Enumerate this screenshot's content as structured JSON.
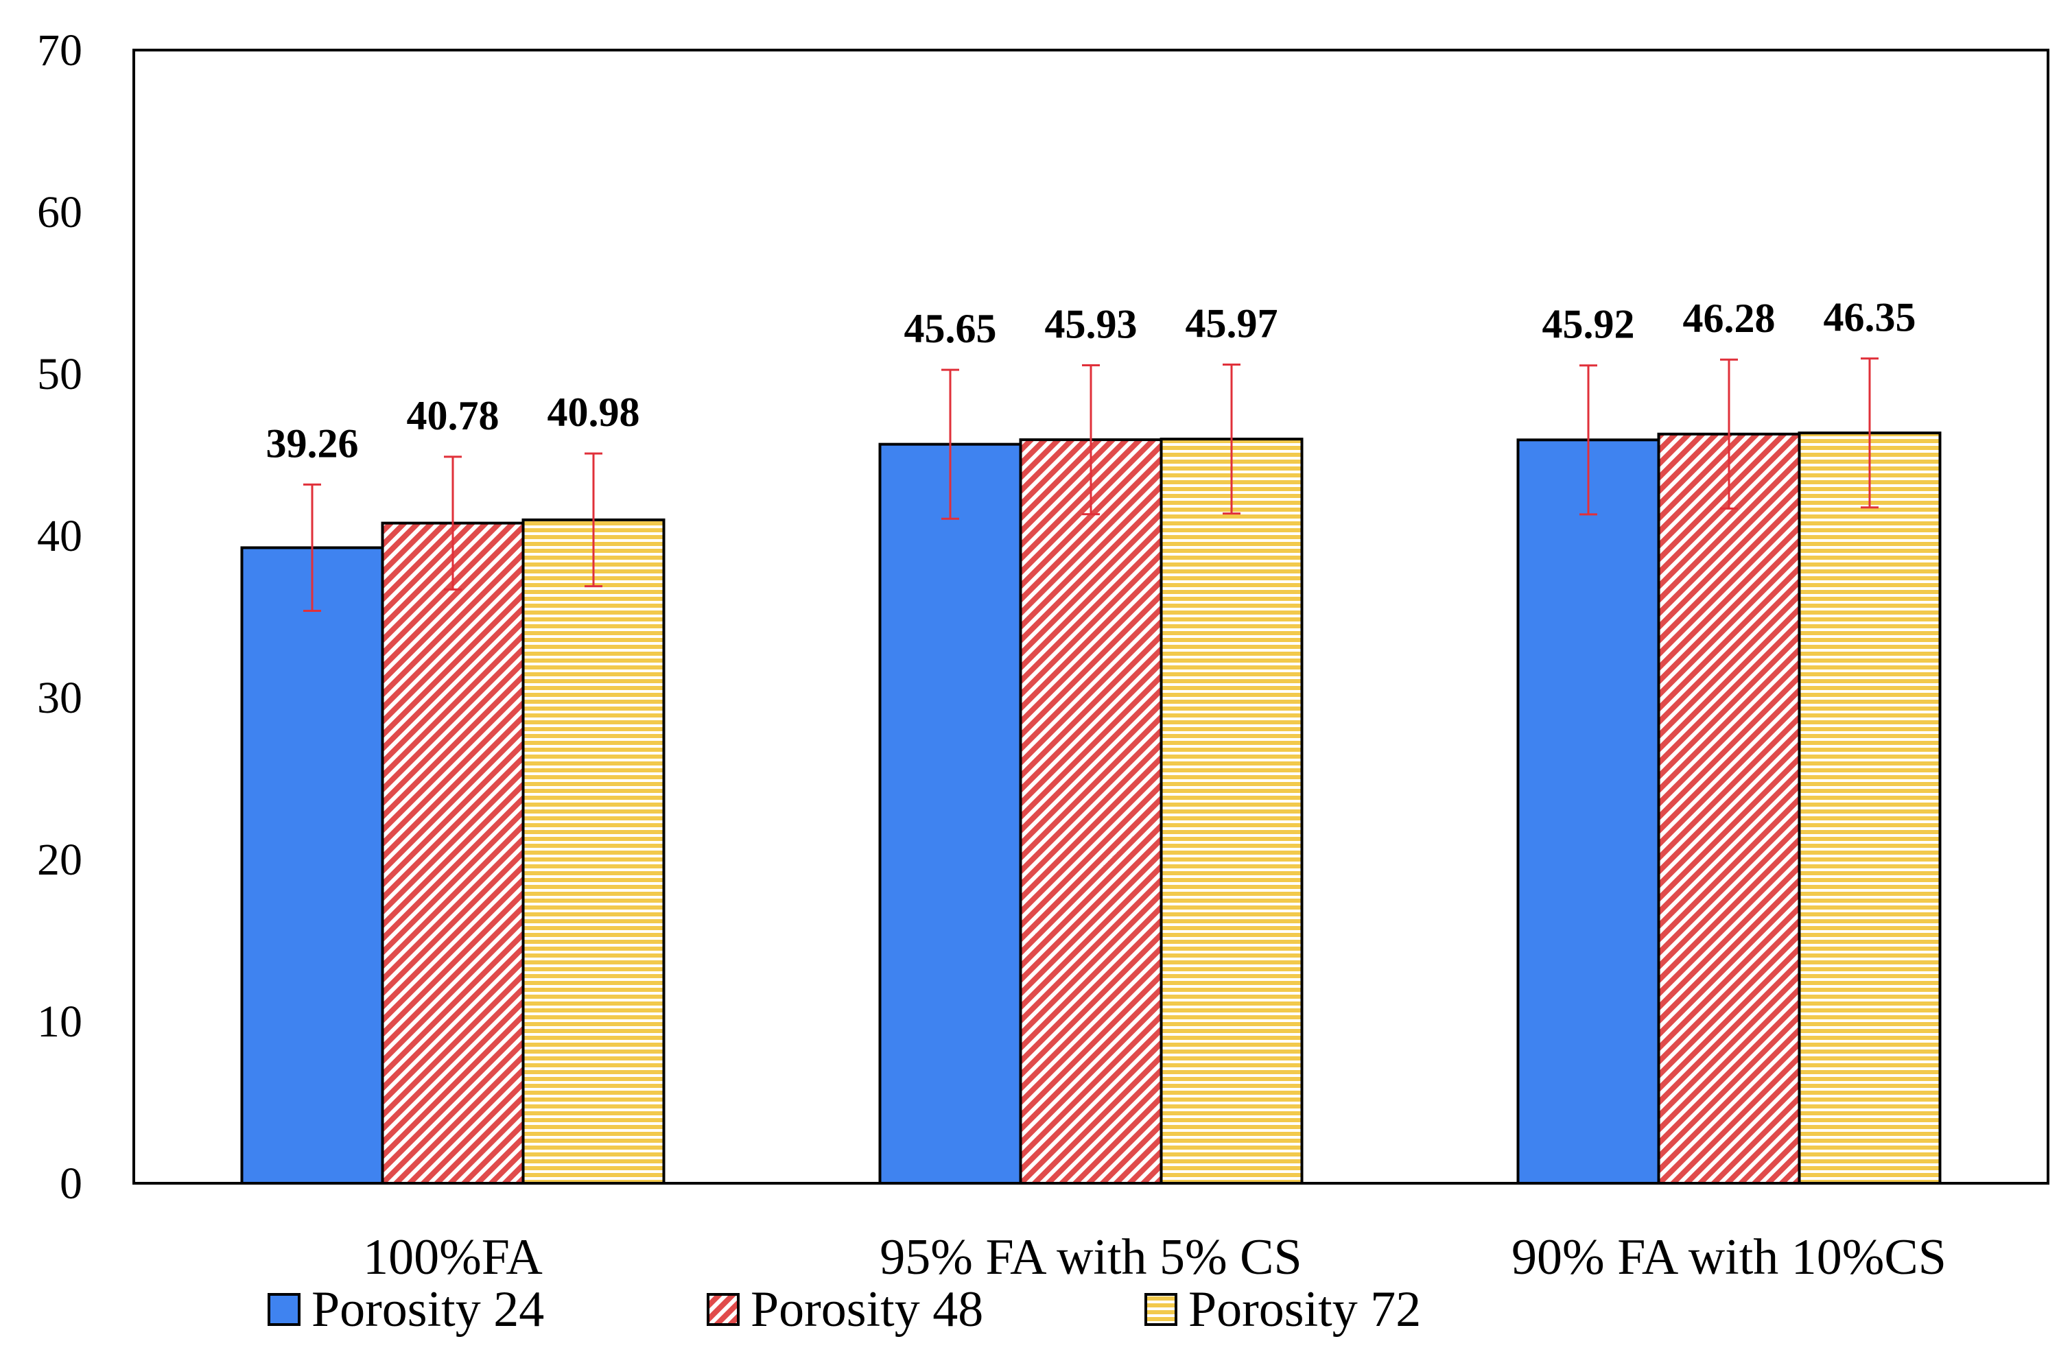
{
  "chart_data": {
    "type": "bar",
    "categories": [
      "100%FA",
      "95% FA with 5% CS",
      "90% FA with 10%CS"
    ],
    "series": [
      {
        "name": "Porosity 24",
        "values": [
          39.26,
          45.65,
          45.92
        ],
        "errors": [
          3.9,
          4.6,
          4.6
        ],
        "color": "#3F83F0",
        "pattern": "solid"
      },
      {
        "name": "Porosity 48",
        "values": [
          40.78,
          45.93,
          46.28
        ],
        "errors": [
          4.1,
          4.6,
          4.6
        ],
        "color": "#E04B4B",
        "pattern": "diagonal"
      },
      {
        "name": "Porosity 72",
        "values": [
          40.98,
          45.97,
          46.35
        ],
        "errors": [
          4.1,
          4.6,
          4.6
        ],
        "color": "#F2C94C",
        "pattern": "horizontal"
      }
    ],
    "value_labels": [
      [
        "39.26",
        "45.65",
        "45.92"
      ],
      [
        "40.78",
        "45.93",
        "46.28"
      ],
      [
        "40.98",
        "45.97",
        "46.35"
      ]
    ],
    "ylim": [
      0,
      70
    ],
    "yticks": [
      "0",
      "10",
      "20",
      "30",
      "40",
      "50",
      "60",
      "70"
    ],
    "title": "",
    "xlabel": "",
    "ylabel": "",
    "grid": false,
    "legend": "bottom",
    "error_bar_color": "#E0303A"
  }
}
